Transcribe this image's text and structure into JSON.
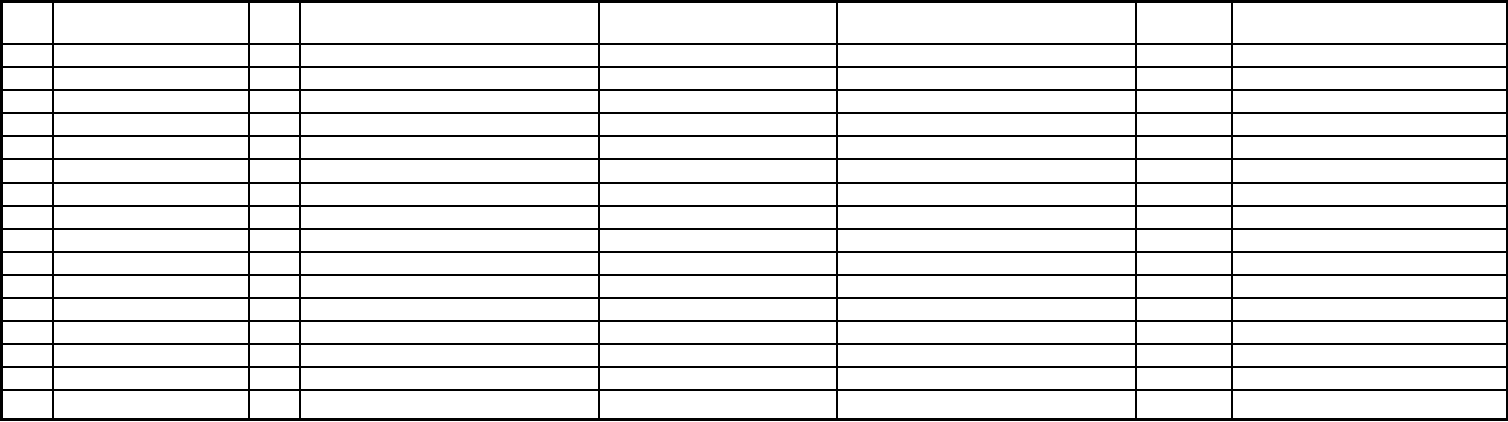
{
  "table": {
    "columns": [
      "",
      "",
      "",
      "",
      "",
      "",
      "",
      ""
    ],
    "rows": [
      [
        "",
        "",
        "",
        "",
        "",
        "",
        "",
        ""
      ],
      [
        "",
        "",
        "",
        "",
        "",
        "",
        "",
        ""
      ],
      [
        "",
        "",
        "",
        "",
        "",
        "",
        "",
        ""
      ],
      [
        "",
        "",
        "",
        "",
        "",
        "",
        "",
        ""
      ],
      [
        "",
        "",
        "",
        "",
        "",
        "",
        "",
        ""
      ],
      [
        "",
        "",
        "",
        "",
        "",
        "",
        "",
        ""
      ],
      [
        "",
        "",
        "",
        "",
        "",
        "",
        "",
        ""
      ],
      [
        "",
        "",
        "",
        "",
        "",
        "",
        "",
        ""
      ],
      [
        "",
        "",
        "",
        "",
        "",
        "",
        "",
        ""
      ],
      [
        "",
        "",
        "",
        "",
        "",
        "",
        "",
        ""
      ],
      [
        "",
        "",
        "",
        "",
        "",
        "",
        "",
        ""
      ],
      [
        "",
        "",
        "",
        "",
        "",
        "",
        "",
        ""
      ],
      [
        "",
        "",
        "",
        "",
        "",
        "",
        "",
        ""
      ],
      [
        "",
        "",
        "",
        "",
        "",
        "",
        "",
        ""
      ],
      [
        "",
        "",
        "",
        "",
        "",
        "",
        "",
        ""
      ],
      [
        "",
        "",
        "",
        "",
        "",
        "",
        "",
        ""
      ]
    ]
  }
}
